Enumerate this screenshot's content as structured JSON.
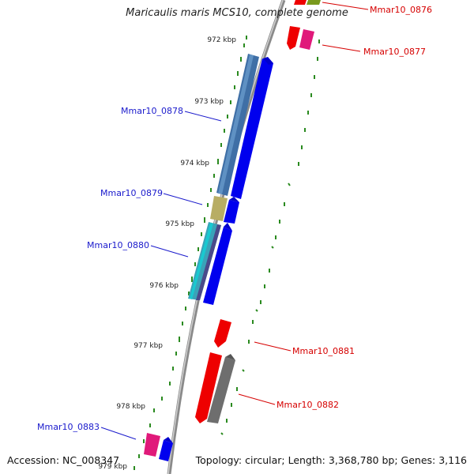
{
  "title": "Maricaulis maris MCS10, complete genome",
  "footer": {
    "accession": "Accession: NC_008347",
    "topology": "Topology: circular; Length: 3,368,780 bp; Genes: 3,116"
  },
  "colors": {
    "backbone": "#888888",
    "tick": "#2a8a1f",
    "forward_strand": "#0000ee",
    "reverse_strand": "#ee0000",
    "forward_label": "#1a1acc",
    "reverse_label": "#d60000"
  },
  "scale_labels": [
    "972 kbp",
    "973 kbp",
    "974 kbp",
    "975 kbp",
    "976 kbp",
    "977 kbp",
    "978 kbp",
    "979 kbp"
  ],
  "gene_labels": [
    {
      "name": "Mmar10_0876",
      "strand": "reverse"
    },
    {
      "name": "Mmar10_0877",
      "strand": "reverse"
    },
    {
      "name": "Mmar10_0878",
      "strand": "forward"
    },
    {
      "name": "Mmar10_0879",
      "strand": "forward"
    },
    {
      "name": "Mmar10_0880",
      "strand": "forward"
    },
    {
      "name": "Mmar10_0881",
      "strand": "reverse"
    },
    {
      "name": "Mmar10_0882",
      "strand": "reverse"
    },
    {
      "name": "Mmar10_0883",
      "strand": "forward"
    }
  ]
}
